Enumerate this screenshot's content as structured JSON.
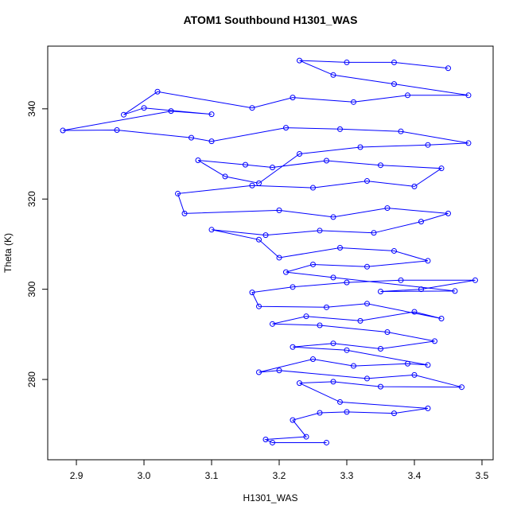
{
  "chart_data": {
    "type": "line",
    "title": "ATOM1 Southbound H1301_WAS",
    "x_label": "H1301_WAS",
    "y_label": "Theta (K)",
    "color": "#0000ff",
    "markers": true,
    "x": [
      3.27,
      3.19,
      3.18,
      3.24,
      3.22,
      3.26,
      3.3,
      3.37,
      3.42,
      3.29,
      3.23,
      3.28,
      3.35,
      3.47,
      3.4,
      3.33,
      3.2,
      3.17,
      3.25,
      3.31,
      3.39,
      3.42,
      3.3,
      3.22,
      3.28,
      3.35,
      3.43,
      3.36,
      3.26,
      3.19,
      3.24,
      3.32,
      3.4,
      3.44,
      3.33,
      3.27,
      3.17,
      3.16,
      3.22,
      3.3,
      3.38,
      3.49,
      3.41,
      3.35,
      3.46,
      3.28,
      3.21,
      3.25,
      3.33,
      3.42,
      3.37,
      3.29,
      3.2,
      3.17,
      3.1,
      3.18,
      3.26,
      3.34,
      3.41,
      3.45,
      3.36,
      3.28,
      3.2,
      3.06,
      3.05,
      3.16,
      3.25,
      3.33,
      3.4,
      3.44,
      3.35,
      3.27,
      3.19,
      3.15,
      3.08,
      3.12,
      3.17,
      3.23,
      3.32,
      3.42,
      3.48,
      3.38,
      3.29,
      3.21,
      3.1,
      3.07,
      2.96,
      2.88,
      3.04,
      3.1,
      3.0,
      2.97,
      3.02,
      3.16,
      3.22,
      3.31,
      3.39,
      3.48,
      3.37,
      3.28,
      3.23,
      3.3,
      3.37,
      3.45
    ],
    "values": [
      266,
      266,
      266.7,
      267.3,
      271,
      272.6,
      272.8,
      272.5,
      273.6,
      275,
      279.2,
      279.5,
      278.4,
      278.3,
      281,
      280.2,
      282,
      281.6,
      284.5,
      283,
      283.5,
      283.2,
      286.5,
      287.2,
      288,
      286.8,
      288.5,
      290.5,
      292,
      292.3,
      294,
      293,
      295,
      293.5,
      296.8,
      296,
      296.2,
      299.3,
      300.5,
      301.5,
      302,
      302,
      300,
      299.5,
      299.6,
      302.6,
      303.8,
      305.5,
      305,
      306.3,
      308.5,
      309.2,
      307,
      311,
      313.2,
      312,
      313,
      312.5,
      315,
      316.8,
      318,
      316,
      317.5,
      316.8,
      321.2,
      323,
      322.5,
      324,
      322.8,
      326.8,
      327.5,
      328.5,
      327,
      327.6,
      328.6,
      325,
      323.5,
      330,
      331.5,
      332,
      332.4,
      335,
      335.5,
      335.8,
      332.8,
      333.6,
      335.3,
      335.2,
      339.5,
      338.8,
      340.2,
      338.7,
      343.8,
      340.2,
      342.5,
      341.5,
      343,
      343,
      345.5,
      347.5,
      350.7,
      350.3,
      350.3,
      349
    ],
    "xlim": [
      2.8576,
      3.5165
    ],
    "ylim": [
      262.2,
      353.9
    ],
    "xticks": [
      2.9,
      {
        "value": 3,
        "label": "3.0"
      },
      3.1,
      3.2,
      3.3,
      3.4,
      3.5
    ],
    "yticks": [
      280,
      300,
      320,
      340
    ]
  }
}
